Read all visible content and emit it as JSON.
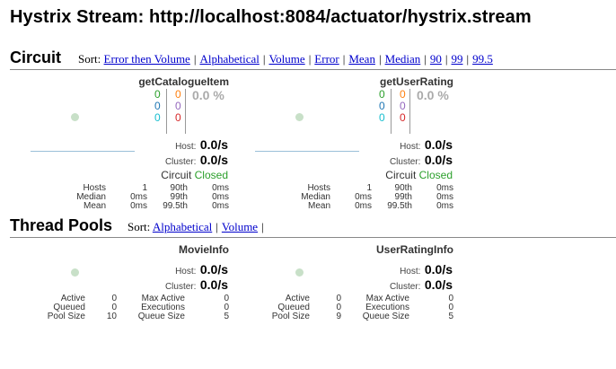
{
  "header": {
    "title": "Hystrix Stream: http://localhost:8084/actuator/hystrix.stream"
  },
  "circuit_section": {
    "title": "Circuit",
    "sort_label": "Sort:",
    "sort_links": [
      "Error then Volume",
      "Alphabetical",
      "Volume",
      "Error",
      "Mean",
      "Median",
      "90",
      "99",
      "99.5"
    ],
    "circuits": [
      {
        "name": "getCatalogueItem",
        "counts_left": [
          "0",
          "0",
          "0"
        ],
        "counts_right": [
          "0",
          "0",
          "0"
        ],
        "error_pct": "0.0 %",
        "host_label": "Host:",
        "host_rate": "0.0/s",
        "cluster_label": "Cluster:",
        "cluster_rate": "0.0/s",
        "circuit_label": "Circuit",
        "circuit_status": "Closed",
        "stats": {
          "hosts_label": "Hosts",
          "hosts": "1",
          "median_label": "Median",
          "median": "0ms",
          "mean_label": "Mean",
          "mean": "0ms",
          "p90_label": "90th",
          "p90": "0ms",
          "p99_label": "99th",
          "p99": "0ms",
          "p995_label": "99.5th",
          "p995": "0ms"
        }
      },
      {
        "name": "getUserRating",
        "counts_left": [
          "0",
          "0",
          "0"
        ],
        "counts_right": [
          "0",
          "0",
          "0"
        ],
        "error_pct": "0.0 %",
        "host_label": "Host:",
        "host_rate": "0.0/s",
        "cluster_label": "Cluster:",
        "cluster_rate": "0.0/s",
        "circuit_label": "Circuit",
        "circuit_status": "Closed",
        "stats": {
          "hosts_label": "Hosts",
          "hosts": "1",
          "median_label": "Median",
          "median": "0ms",
          "mean_label": "Mean",
          "mean": "0ms",
          "p90_label": "90th",
          "p90": "0ms",
          "p99_label": "99th",
          "p99": "0ms",
          "p995_label": "99.5th",
          "p995": "0ms"
        }
      }
    ]
  },
  "thread_section": {
    "title": "Thread Pools",
    "sort_label": "Sort:",
    "sort_links": [
      "Alphabetical",
      "Volume"
    ],
    "pools": [
      {
        "name": "MovieInfo",
        "host_label": "Host:",
        "host_rate": "0.0/s",
        "cluster_label": "Cluster:",
        "cluster_rate": "0.0/s",
        "stats": {
          "active_label": "Active",
          "active": "0",
          "queued_label": "Queued",
          "queued": "0",
          "pool_size_label": "Pool Size",
          "pool_size": "10",
          "max_active_label": "Max Active",
          "max_active": "0",
          "executions_label": "Executions",
          "executions": "0",
          "queue_size_label": "Queue Size",
          "queue_size": "5"
        }
      },
      {
        "name": "UserRatingInfo",
        "host_label": "Host:",
        "host_rate": "0.0/s",
        "cluster_label": "Cluster:",
        "cluster_rate": "0.0/s",
        "stats": {
          "active_label": "Active",
          "active": "0",
          "queued_label": "Queued",
          "queued": "0",
          "pool_size_label": "Pool Size",
          "pool_size": "9",
          "max_active_label": "Max Active",
          "max_active": "0",
          "executions_label": "Executions",
          "executions": "0",
          "queue_size_label": "Queue Size",
          "queue_size": "5"
        }
      }
    ]
  },
  "colors": {
    "success": "#2ca02c",
    "short_circuited": "#1f77b4",
    "bad_request": "#17becf",
    "timeout": "#ff7f0e",
    "rejected": "#9467bd",
    "failure": "#d62728",
    "closed": "#2ca02c",
    "link": "#0000cc"
  }
}
